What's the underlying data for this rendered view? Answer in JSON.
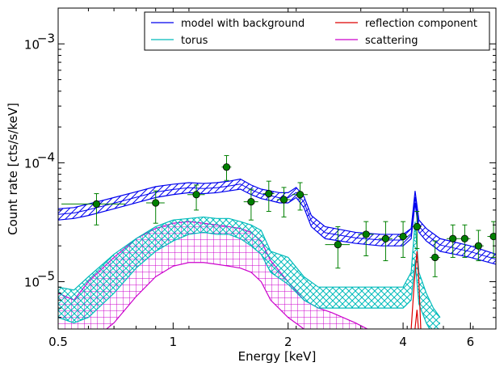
{
  "chart_data": {
    "type": "line",
    "xlabel": "Energy [keV]",
    "ylabel": "Count rate [cts/s/keV]",
    "xscale": "log",
    "yscale": "log",
    "xlim": [
      0.5,
      7.0
    ],
    "ylim": [
      4e-06,
      0.002
    ],
    "x_ticks": [
      {
        "value": 0.5,
        "label": "0.5"
      },
      {
        "value": 1,
        "label": "1"
      },
      {
        "value": 2,
        "label": "2"
      },
      {
        "value": 4,
        "label": "4"
      },
      {
        "value": 6,
        "label": "6"
      }
    ],
    "y_ticks": [
      {
        "value": 1e-05,
        "base": "10",
        "exp": "−5"
      },
      {
        "value": 0.0001,
        "base": "10",
        "exp": "−4"
      },
      {
        "value": 0.001,
        "base": "10",
        "exp": "−3"
      }
    ],
    "legend": {
      "placement": "top-right",
      "columns": 2
    },
    "series": [
      {
        "name": "model with background",
        "color": "#0000ee",
        "hatch": "diagonal",
        "x": [
          0.5,
          0.55,
          0.6,
          0.7,
          0.8,
          0.9,
          1.0,
          1.1,
          1.2,
          1.3,
          1.4,
          1.5,
          1.6,
          1.7,
          1.8,
          1.9,
          2.0,
          2.1,
          2.2,
          2.3,
          2.5,
          3.0,
          3.5,
          4.0,
          4.2,
          4.3,
          4.4,
          4.6,
          5.0,
          6.0,
          7.0
        ],
        "upper": [
          4.1e-05,
          4.2e-05,
          4.5e-05,
          5.1e-05,
          5.7e-05,
          6.3e-05,
          6.6e-05,
          6.8e-05,
          6.7e-05,
          6.8e-05,
          7e-05,
          7.3e-05,
          6.5e-05,
          6e-05,
          5.8e-05,
          5.6e-05,
          5.6e-05,
          6.2e-05,
          5.2e-05,
          3.6e-05,
          2.9e-05,
          2.6e-05,
          2.5e-05,
          2.5e-05,
          2.8e-05,
          5.8e-05,
          3.3e-05,
          2.8e-05,
          2.3e-05,
          2e-05,
          1.7e-05
        ],
        "lower": [
          3.3e-05,
          3.4e-05,
          3.6e-05,
          4.1e-05,
          4.6e-05,
          5.1e-05,
          5.4e-05,
          5.6e-05,
          5.5e-05,
          5.6e-05,
          5.8e-05,
          6e-05,
          5.4e-05,
          5e-05,
          4.8e-05,
          4.6e-05,
          4.6e-05,
          5.1e-05,
          4.2e-05,
          2.9e-05,
          2.3e-05,
          2.1e-05,
          2e-05,
          2e-05,
          2.3e-05,
          4.6e-05,
          2.6e-05,
          2.2e-05,
          1.8e-05,
          1.6e-05,
          1.4e-05
        ]
      },
      {
        "name": "reflection component",
        "color": "#dd0000",
        "hatch": "none",
        "x": [
          4.0,
          4.2,
          4.28,
          4.35,
          4.4,
          4.45,
          4.5,
          4.6
        ],
        "upper": [
          3e-06,
          4e-06,
          1e-05,
          1.8e-05,
          1e-05,
          4e-06,
          3e-06,
          3e-06
        ],
        "lower": [
          2e-06,
          2e-06,
          3.5e-06,
          5.8e-06,
          3.5e-06,
          2e-06,
          2e-06,
          2e-06
        ]
      },
      {
        "name": "torus",
        "color": "#00bbbb",
        "hatch": "cross",
        "x": [
          0.5,
          0.55,
          0.6,
          0.7,
          0.8,
          0.9,
          1.0,
          1.1,
          1.2,
          1.3,
          1.4,
          1.5,
          1.6,
          1.7,
          1.8,
          2.0,
          2.2,
          2.4,
          2.6,
          3.0,
          3.5,
          4.0,
          4.2,
          4.3,
          4.4,
          4.6,
          4.8,
          5.0
        ],
        "upper": [
          9e-06,
          8.5e-06,
          1.1e-05,
          1.7e-05,
          2.3e-05,
          2.9e-05,
          3.3e-05,
          3.4e-05,
          3.5e-05,
          3.4e-05,
          3.4e-05,
          3.2e-05,
          3e-05,
          2.7e-05,
          1.8e-05,
          1.6e-05,
          1.1e-05,
          9e-06,
          9e-06,
          9e-06,
          9e-06,
          9e-06,
          1.2e-05,
          3.2e-05,
          1.2e-05,
          8e-06,
          6e-06,
          5e-06
        ],
        "lower": [
          5e-06,
          4.5e-06,
          5e-06,
          8e-06,
          1.3e-05,
          1.8e-05,
          2.2e-05,
          2.5e-05,
          2.6e-05,
          2.5e-05,
          2.5e-05,
          2.3e-05,
          2e-05,
          1.7e-05,
          1.2e-05,
          9.5e-06,
          7e-06,
          6e-06,
          6e-06,
          6e-06,
          6e-06,
          6e-06,
          7e-06,
          1.5e-05,
          6.5e-06,
          4.5e-06,
          3.5e-06,
          3e-06
        ]
      },
      {
        "name": "scattering",
        "color": "#cc00cc",
        "hatch": "grid",
        "x": [
          0.5,
          0.55,
          0.6,
          0.7,
          0.8,
          0.9,
          1.0,
          1.1,
          1.2,
          1.3,
          1.4,
          1.5,
          1.6,
          1.7,
          1.8,
          2.0,
          2.2,
          2.4,
          2.6,
          3.0,
          3.5
        ],
        "upper": [
          8e-06,
          7e-06,
          1e-05,
          1.6e-05,
          2.3e-05,
          2.8e-05,
          3.1e-05,
          3.2e-05,
          3.1e-05,
          3e-05,
          2.9e-05,
          2.8e-05,
          2.6e-05,
          2.2e-05,
          1.5e-05,
          1e-05,
          7e-06,
          6e-06,
          5.5e-06,
          4.5e-06,
          3.5e-06
        ],
        "lower": [
          3e-06,
          2.5e-06,
          3e-06,
          4.5e-06,
          7.5e-06,
          1.1e-05,
          1.35e-05,
          1.45e-05,
          1.45e-05,
          1.4e-05,
          1.35e-05,
          1.3e-05,
          1.2e-05,
          1e-05,
          7e-06,
          5e-06,
          4e-06,
          3.5e-06,
          3e-06,
          2.5e-06,
          2e-06
        ]
      }
    ],
    "data_points": {
      "color": "#008000",
      "x": [
        0.63,
        0.9,
        1.15,
        1.38,
        1.6,
        1.78,
        1.95,
        2.15,
        2.7,
        3.2,
        3.6,
        4.0,
        4.35,
        4.85,
        5.4,
        5.8,
        6.3,
        6.9
      ],
      "y": [
        4.5e-05,
        4.6e-05,
        5.4e-05,
        9.2e-05,
        4.7e-05,
        5.5e-05,
        4.9e-05,
        5.4e-05,
        2.05e-05,
        2.5e-05,
        2.3e-05,
        2.4e-05,
        2.9e-05,
        1.6e-05,
        2.3e-05,
        2.3e-05,
        2e-05,
        2.4e-05
      ],
      "xerr": [
        0.12,
        0.05,
        0.06,
        0.04,
        0.07,
        0.06,
        0.08,
        0.1,
        0.2,
        0.15,
        0.15,
        0.12,
        0.12,
        0.15,
        0.2,
        0.2,
        0.2,
        0.25
      ],
      "yerr_low": [
        3e-05,
        3.1e-05,
        4e-05,
        7.1e-05,
        3.3e-05,
        3.9e-05,
        3.5e-05,
        4e-05,
        1.3e-05,
        1.65e-05,
        1.5e-05,
        1.6e-05,
        1.9e-05,
        1.1e-05,
        1.6e-05,
        1.6e-05,
        1.5e-05,
        1.6e-05
      ],
      "yerr_high": [
        5.5e-05,
        5.8e-05,
        6.5e-05,
        0.000115,
        6e-05,
        7e-05,
        6.2e-05,
        6.8e-05,
        2.9e-05,
        3.2e-05,
        3.2e-05,
        3.2e-05,
        3.9e-05,
        2.2e-05,
        3e-05,
        3e-05,
        2.7e-05,
        3.2e-05
      ]
    }
  }
}
